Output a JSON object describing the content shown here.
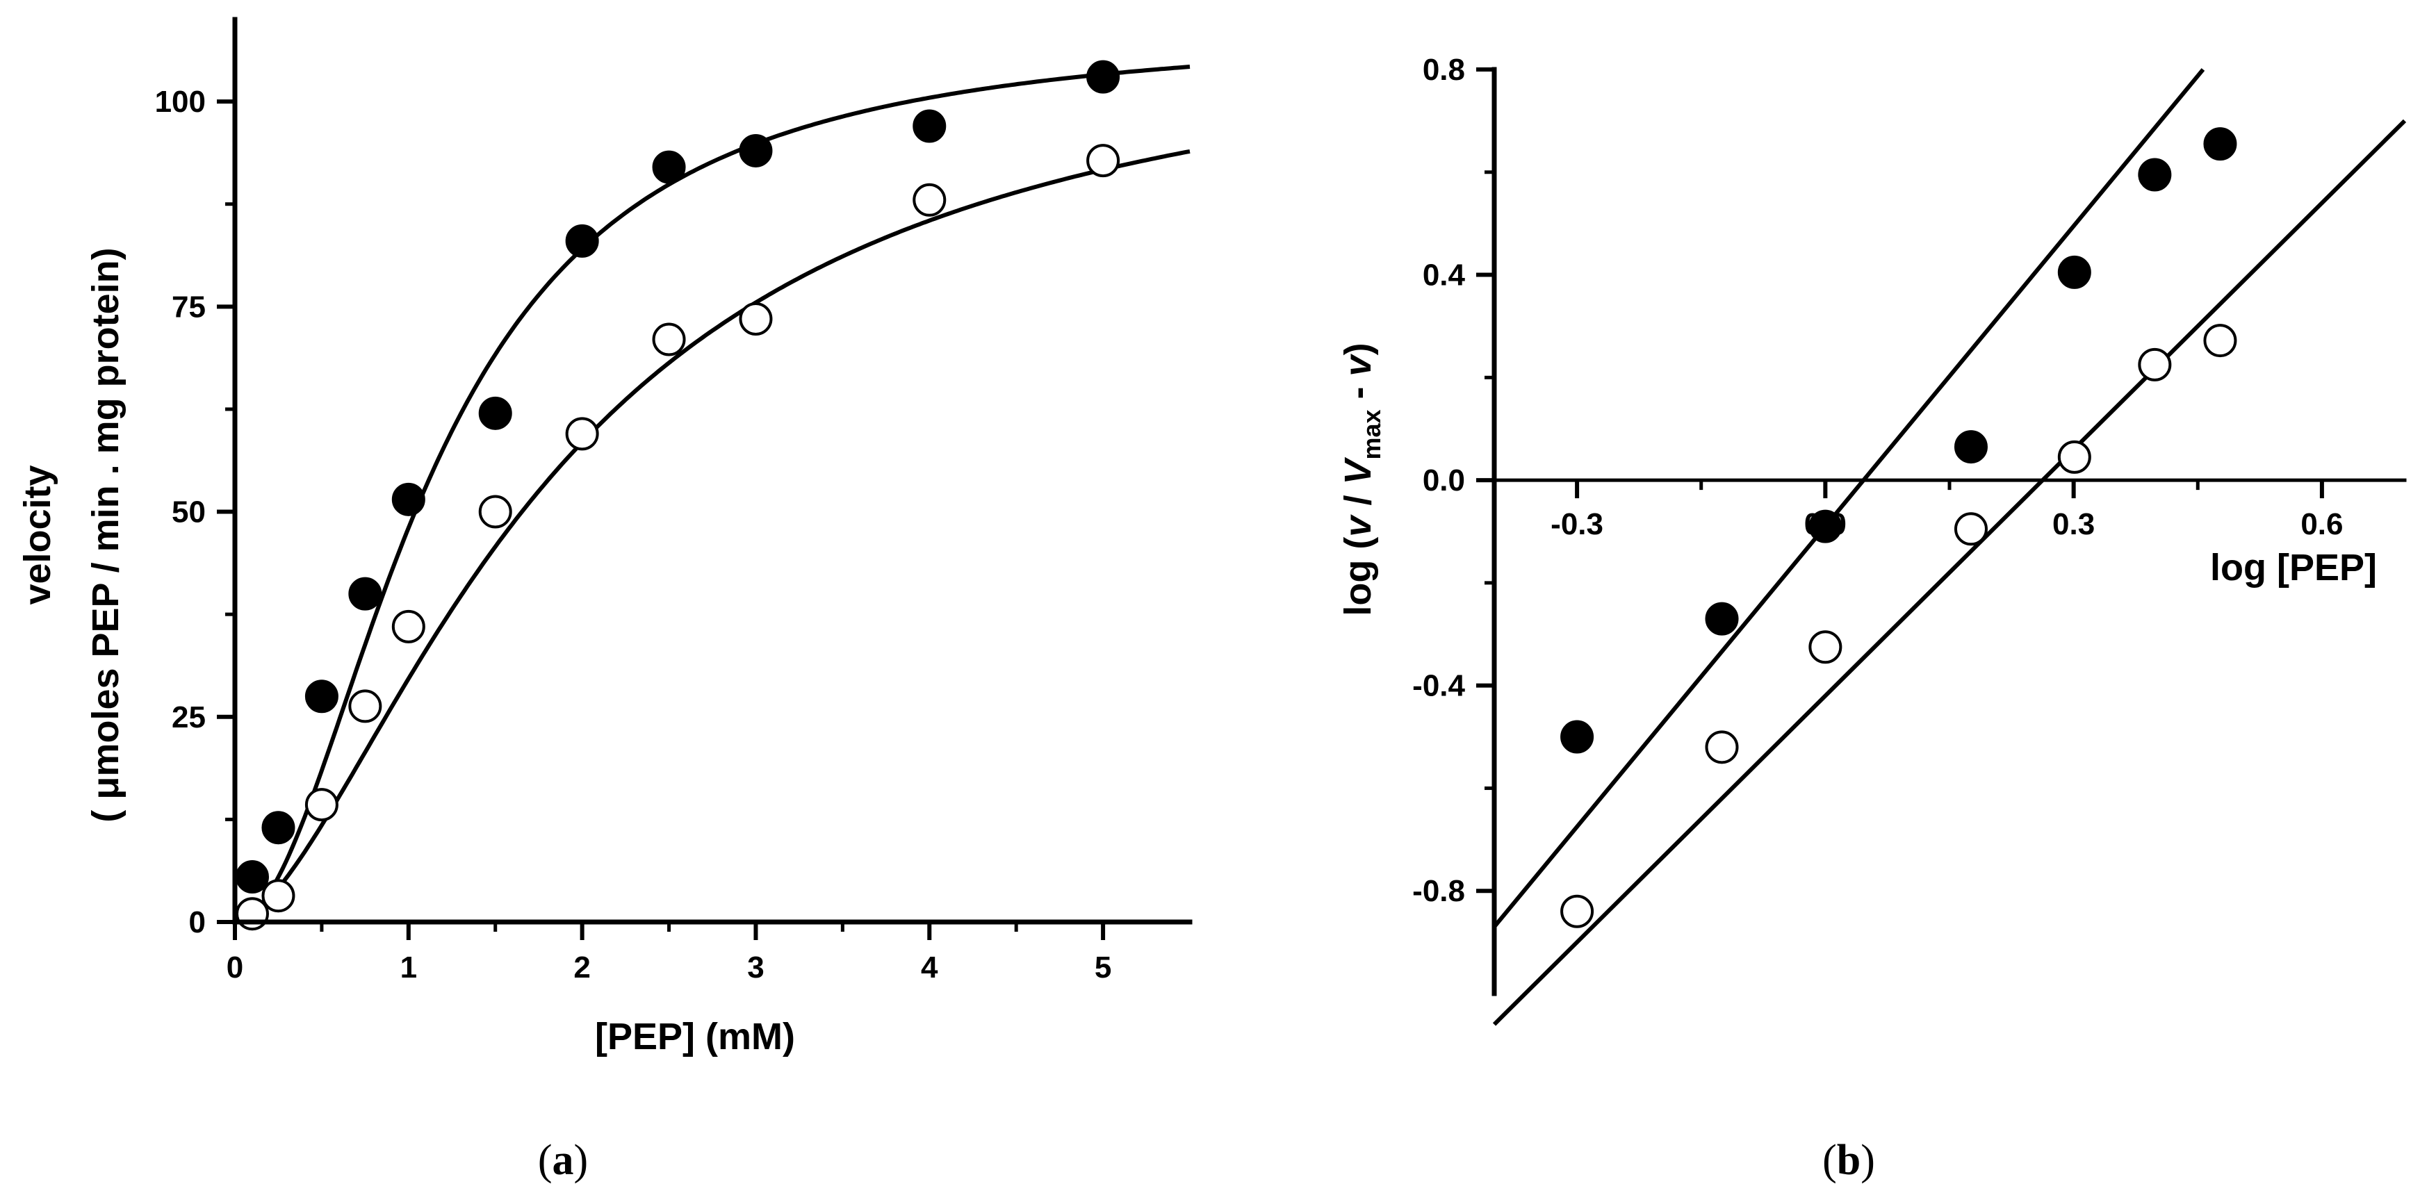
{
  "chart_data": [
    {
      "type": "scatter",
      "panel": "a",
      "caption_open": "(",
      "caption_letter": "a",
      "caption_close": ")",
      "title": "",
      "xlabel": "[PEP] (mM)",
      "ylabel_line1": "velocity",
      "ylabel_line2": "( μmoles PEP / min . mg protein)",
      "xlim": [
        0,
        5.5
      ],
      "ylim": [
        0,
        110
      ],
      "xticks": [
        0,
        1,
        2,
        3,
        4,
        5
      ],
      "xtick_labels": [
        "0",
        "1",
        "2",
        "3",
        "4",
        "5"
      ],
      "yticks": [
        0,
        25,
        50,
        75,
        100
      ],
      "ytick_labels": [
        "0",
        "25",
        "50",
        "75",
        "100"
      ],
      "series": [
        {
          "name": "filled",
          "marker": "filled-circle",
          "x": [
            0.1,
            0.25,
            0.5,
            0.75,
            1.0,
            1.5,
            2.0,
            2.5,
            3.0,
            4.0,
            5.0
          ],
          "y": [
            5.5,
            11.5,
            27.5,
            40,
            51.5,
            62,
            83,
            92,
            94,
            97,
            103
          ],
          "fit": {
            "model": "hill",
            "vmax": 109,
            "k": 1.13,
            "n": 1.95
          }
        },
        {
          "name": "open",
          "marker": "open-circle",
          "x": [
            0.1,
            0.25,
            0.5,
            0.75,
            1.0,
            1.5,
            2.0,
            2.5,
            3.0,
            4.0,
            5.0
          ],
          "y": [
            1,
            3.2,
            14.3,
            26.3,
            36,
            50,
            59.5,
            71,
            73.5,
            88,
            92.8
          ],
          "fit": {
            "model": "hill",
            "vmax": 110,
            "k": 1.85,
            "n": 1.62
          }
        }
      ]
    },
    {
      "type": "scatter",
      "panel": "b",
      "caption_open": "(",
      "caption_letter": "b",
      "caption_close": ")",
      "title": "",
      "xlabel": "log [PEP]",
      "ylabel_prefix": "log (",
      "ylabel_v1": "v",
      "ylabel_slash": " / ",
      "ylabel_V": "V",
      "ylabel_sub": "max",
      "ylabel_minus": " - ",
      "ylabel_v2": "v",
      "ylabel_suffix": ")",
      "xlim": [
        -0.4,
        0.7
      ],
      "ylim": [
        -1.0,
        0.8
      ],
      "xticks": [
        -0.3,
        0.0,
        0.3,
        0.6
      ],
      "xtick_labels": [
        "-0.3",
        "0.0",
        "0.3",
        "0.6"
      ],
      "yticks": [
        0.8,
        0.4,
        0.0,
        -0.4,
        -0.8
      ],
      "ytick_labels": [
        "0.8",
        "0.4",
        "0.0",
        "-0.4",
        "-0.8"
      ],
      "series": [
        {
          "name": "filled",
          "marker": "filled-circle",
          "x": [
            -0.3,
            -0.125,
            0.0,
            0.176,
            0.301,
            0.398,
            0.477
          ],
          "y": [
            -0.5,
            -0.27,
            -0.09,
            0.065,
            0.405,
            0.595,
            0.655
          ],
          "fit": {
            "model": "linear",
            "slope": 1.95,
            "intercept": -0.09
          }
        },
        {
          "name": "open",
          "marker": "open-circle",
          "x": [
            -0.3,
            -0.125,
            0.0,
            0.176,
            0.301,
            0.398,
            0.477
          ],
          "y": [
            -0.84,
            -0.52,
            -0.325,
            -0.095,
            0.045,
            0.225,
            0.272
          ],
          "fit": {
            "model": "linear",
            "slope": 1.6,
            "intercept": -0.42
          }
        }
      ]
    }
  ]
}
